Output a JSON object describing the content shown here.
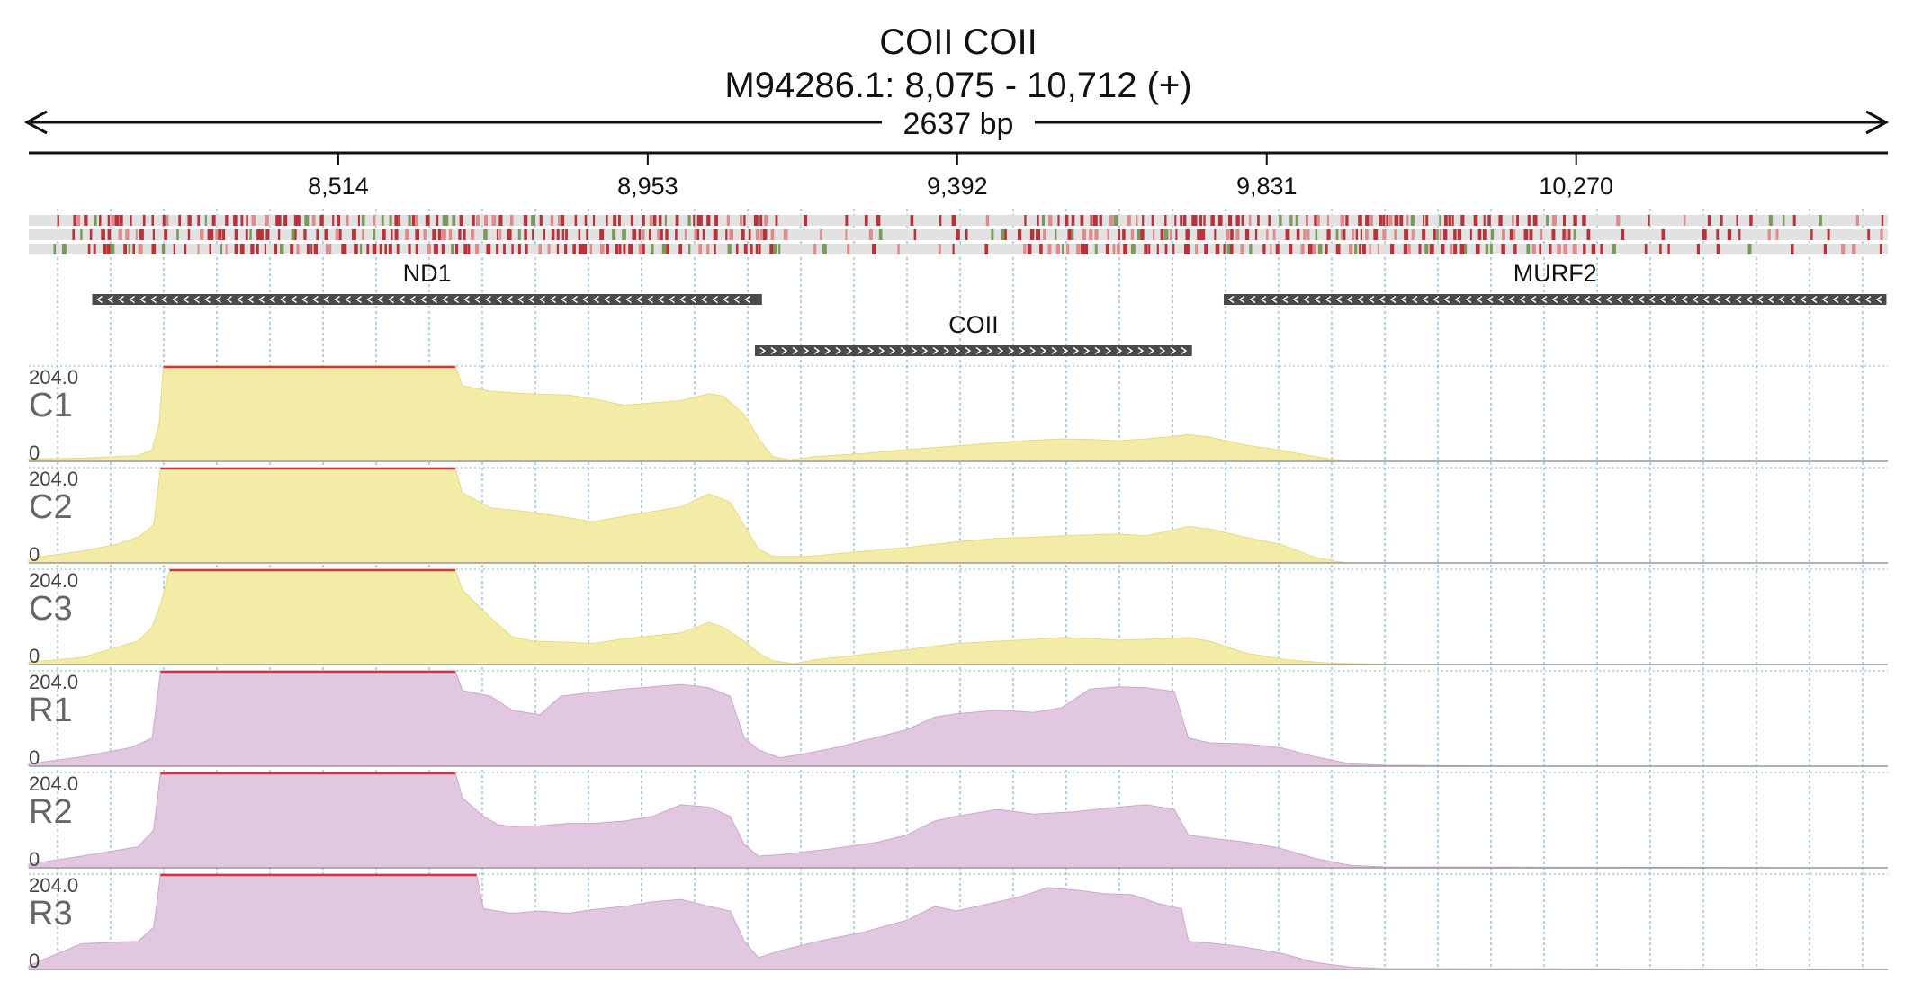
{
  "header": {
    "title": "COII  COII",
    "location": "M94286.1: 8,075 - 10,712 (+)",
    "span_label": "2637 bp"
  },
  "chart_data": {
    "type": "area",
    "region": {
      "start": 8075,
      "end": 10712
    },
    "ticks": [
      {
        "pos": 8514,
        "label": "8,514"
      },
      {
        "pos": 8953,
        "label": "8,953"
      },
      {
        "pos": 9392,
        "label": "9,392"
      },
      {
        "pos": 9831,
        "label": "9,831"
      },
      {
        "pos": 10270,
        "label": "10,270"
      }
    ],
    "genes": [
      {
        "name": "ND1",
        "start": 8165,
        "end": 9115,
        "strand": "-"
      },
      {
        "name": "COII",
        "start": 9105,
        "end": 9725,
        "strand": "+"
      },
      {
        "name": "MURF2",
        "start": 9770,
        "end": 10710,
        "strand": "-"
      }
    ],
    "variant_colors": {
      "track": "#e2e2e2",
      "major": "#b8323a",
      "minor": "#e08a8a",
      "other": "#7a9a5a"
    },
    "tracks": [
      {
        "name": "C1",
        "max_label": "204.0",
        "min_label": "0",
        "max": 204,
        "fill": "#f3eca6",
        "profile": [
          [
            8075,
            5
          ],
          [
            8150,
            7
          ],
          [
            8230,
            12
          ],
          [
            8250,
            25
          ],
          [
            8260,
            80
          ],
          [
            8266,
            204
          ],
          [
            8680,
            204
          ],
          [
            8690,
            162
          ],
          [
            8730,
            150
          ],
          [
            8780,
            145
          ],
          [
            8840,
            142
          ],
          [
            8875,
            134
          ],
          [
            8920,
            120
          ],
          [
            8960,
            125
          ],
          [
            9000,
            130
          ],
          [
            9040,
            145
          ],
          [
            9060,
            140
          ],
          [
            9090,
            100
          ],
          [
            9110,
            50
          ],
          [
            9130,
            10
          ],
          [
            9155,
            3
          ],
          [
            9190,
            10
          ],
          [
            9260,
            17
          ],
          [
            9320,
            25
          ],
          [
            9390,
            33
          ],
          [
            9450,
            40
          ],
          [
            9500,
            45
          ],
          [
            9540,
            48
          ],
          [
            9580,
            47
          ],
          [
            9620,
            44
          ],
          [
            9660,
            48
          ],
          [
            9720,
            57
          ],
          [
            9750,
            52
          ],
          [
            9800,
            35
          ],
          [
            9850,
            24
          ],
          [
            9900,
            10
          ],
          [
            9935,
            2
          ],
          [
            9950,
            0
          ],
          [
            10712,
            0
          ]
        ]
      },
      {
        "name": "C2",
        "max_label": "204.0",
        "min_label": "0",
        "max": 204,
        "fill": "#f3eca6",
        "profile": [
          [
            8075,
            10
          ],
          [
            8150,
            25
          ],
          [
            8200,
            40
          ],
          [
            8230,
            55
          ],
          [
            8252,
            80
          ],
          [
            8262,
            204
          ],
          [
            8680,
            204
          ],
          [
            8690,
            150
          ],
          [
            8730,
            118
          ],
          [
            8780,
            110
          ],
          [
            8840,
            97
          ],
          [
            8875,
            88
          ],
          [
            8920,
            100
          ],
          [
            9000,
            120
          ],
          [
            9040,
            148
          ],
          [
            9070,
            130
          ],
          [
            9090,
            80
          ],
          [
            9110,
            30
          ],
          [
            9130,
            14
          ],
          [
            9180,
            14
          ],
          [
            9260,
            25
          ],
          [
            9320,
            33
          ],
          [
            9390,
            45
          ],
          [
            9450,
            53
          ],
          [
            9500,
            55
          ],
          [
            9540,
            58
          ],
          [
            9580,
            60
          ],
          [
            9620,
            62
          ],
          [
            9660,
            58
          ],
          [
            9720,
            78
          ],
          [
            9750,
            73
          ],
          [
            9800,
            55
          ],
          [
            9850,
            40
          ],
          [
            9900,
            12
          ],
          [
            9935,
            2
          ],
          [
            9950,
            0
          ],
          [
            10712,
            0
          ]
        ]
      },
      {
        "name": "C3",
        "max_label": "204.0",
        "min_label": "0",
        "max": 204,
        "fill": "#f3eca6",
        "profile": [
          [
            8075,
            5
          ],
          [
            8150,
            15
          ],
          [
            8230,
            50
          ],
          [
            8250,
            80
          ],
          [
            8262,
            130
          ],
          [
            8275,
            204
          ],
          [
            8680,
            204
          ],
          [
            8690,
            160
          ],
          [
            8730,
            100
          ],
          [
            8760,
            60
          ],
          [
            8790,
            50
          ],
          [
            8840,
            48
          ],
          [
            8875,
            45
          ],
          [
            8920,
            55
          ],
          [
            9000,
            68
          ],
          [
            9040,
            90
          ],
          [
            9060,
            80
          ],
          [
            9090,
            50
          ],
          [
            9110,
            25
          ],
          [
            9130,
            8
          ],
          [
            9160,
            2
          ],
          [
            9190,
            10
          ],
          [
            9260,
            22
          ],
          [
            9320,
            32
          ],
          [
            9390,
            45
          ],
          [
            9450,
            50
          ],
          [
            9500,
            54
          ],
          [
            9540,
            58
          ],
          [
            9580,
            56
          ],
          [
            9620,
            52
          ],
          [
            9660,
            54
          ],
          [
            9720,
            58
          ],
          [
            9750,
            50
          ],
          [
            9800,
            25
          ],
          [
            9860,
            10
          ],
          [
            9920,
            3
          ],
          [
            10000,
            1
          ],
          [
            10100,
            0
          ],
          [
            10712,
            0
          ]
        ]
      },
      {
        "name": "R1",
        "max_label": "204.0",
        "min_label": "0",
        "max": 204,
        "fill": "#e2c7e1",
        "profile": [
          [
            8075,
            5
          ],
          [
            8150,
            20
          ],
          [
            8220,
            40
          ],
          [
            8250,
            60
          ],
          [
            8262,
            204
          ],
          [
            8680,
            204
          ],
          [
            8690,
            162
          ],
          [
            8730,
            150
          ],
          [
            8760,
            120
          ],
          [
            8800,
            110
          ],
          [
            8830,
            150
          ],
          [
            8875,
            158
          ],
          [
            8920,
            165
          ],
          [
            8960,
            170
          ],
          [
            9000,
            175
          ],
          [
            9040,
            168
          ],
          [
            9070,
            150
          ],
          [
            9090,
            60
          ],
          [
            9110,
            35
          ],
          [
            9140,
            18
          ],
          [
            9170,
            25
          ],
          [
            9220,
            40
          ],
          [
            9260,
            55
          ],
          [
            9320,
            78
          ],
          [
            9360,
            105
          ],
          [
            9390,
            112
          ],
          [
            9450,
            120
          ],
          [
            9500,
            115
          ],
          [
            9540,
            125
          ],
          [
            9580,
            165
          ],
          [
            9620,
            170
          ],
          [
            9660,
            168
          ],
          [
            9700,
            160
          ],
          [
            9720,
            60
          ],
          [
            9750,
            50
          ],
          [
            9800,
            48
          ],
          [
            9850,
            40
          ],
          [
            9900,
            20
          ],
          [
            9950,
            5
          ],
          [
            10000,
            2
          ],
          [
            10100,
            1
          ],
          [
            10200,
            0
          ],
          [
            10712,
            0
          ]
        ]
      },
      {
        "name": "R2",
        "max_label": "204.0",
        "min_label": "0",
        "max": 204,
        "fill": "#e2c7e1",
        "profile": [
          [
            8075,
            8
          ],
          [
            8150,
            25
          ],
          [
            8230,
            45
          ],
          [
            8252,
            80
          ],
          [
            8262,
            204
          ],
          [
            8680,
            204
          ],
          [
            8690,
            150
          ],
          [
            8720,
            110
          ],
          [
            8740,
            93
          ],
          [
            8760,
            88
          ],
          [
            8800,
            90
          ],
          [
            8840,
            95
          ],
          [
            8875,
            95
          ],
          [
            8920,
            100
          ],
          [
            8960,
            110
          ],
          [
            9000,
            135
          ],
          [
            9040,
            130
          ],
          [
            9070,
            110
          ],
          [
            9090,
            50
          ],
          [
            9110,
            25
          ],
          [
            9140,
            28
          ],
          [
            9220,
            42
          ],
          [
            9280,
            55
          ],
          [
            9320,
            70
          ],
          [
            9360,
            100
          ],
          [
            9390,
            110
          ],
          [
            9450,
            125
          ],
          [
            9500,
            115
          ],
          [
            9560,
            120
          ],
          [
            9620,
            130
          ],
          [
            9660,
            135
          ],
          [
            9700,
            125
          ],
          [
            9720,
            70
          ],
          [
            9760,
            62
          ],
          [
            9800,
            55
          ],
          [
            9850,
            42
          ],
          [
            9900,
            20
          ],
          [
            9950,
            5
          ],
          [
            10000,
            2
          ],
          [
            10712,
            0
          ]
        ]
      },
      {
        "name": "R3",
        "max_label": "204.0",
        "min_label": "0",
        "max": 204,
        "fill": "#e2c7e1",
        "profile": [
          [
            8075,
            8
          ],
          [
            8150,
            55
          ],
          [
            8230,
            60
          ],
          [
            8252,
            90
          ],
          [
            8262,
            204
          ],
          [
            8710,
            204
          ],
          [
            8720,
            130
          ],
          [
            8760,
            120
          ],
          [
            8800,
            125
          ],
          [
            8840,
            120
          ],
          [
            8875,
            128
          ],
          [
            8920,
            135
          ],
          [
            8960,
            145
          ],
          [
            9000,
            150
          ],
          [
            9040,
            135
          ],
          [
            9070,
            125
          ],
          [
            9090,
            60
          ],
          [
            9110,
            25
          ],
          [
            9140,
            40
          ],
          [
            9200,
            62
          ],
          [
            9260,
            80
          ],
          [
            9320,
            105
          ],
          [
            9360,
            135
          ],
          [
            9390,
            125
          ],
          [
            9450,
            145
          ],
          [
            9480,
            155
          ],
          [
            9520,
            175
          ],
          [
            9560,
            170
          ],
          [
            9600,
            162
          ],
          [
            9640,
            160
          ],
          [
            9680,
            140
          ],
          [
            9710,
            130
          ],
          [
            9720,
            60
          ],
          [
            9760,
            55
          ],
          [
            9800,
            48
          ],
          [
            9850,
            35
          ],
          [
            9900,
            15
          ],
          [
            9950,
            5
          ],
          [
            10000,
            2
          ],
          [
            10712,
            0
          ]
        ]
      }
    ]
  }
}
